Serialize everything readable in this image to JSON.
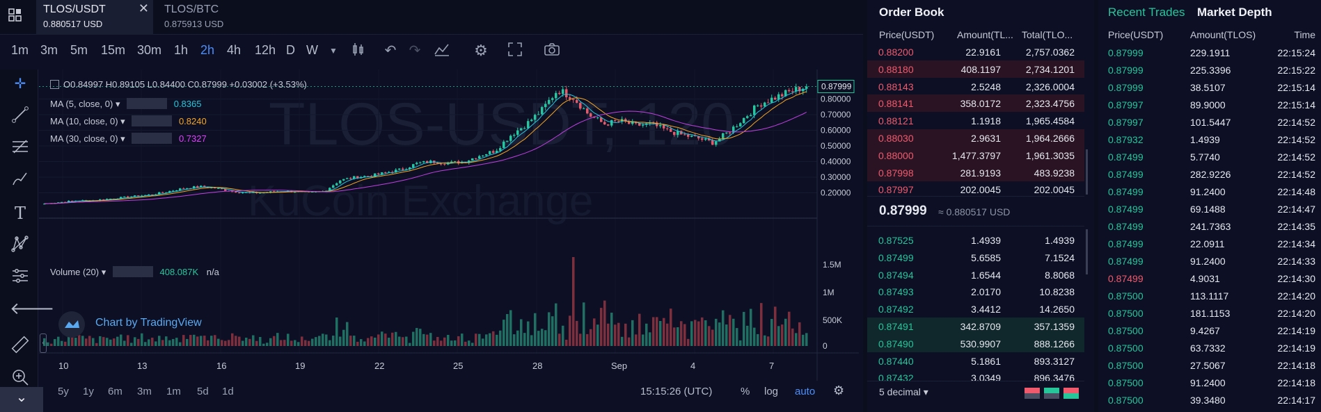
{
  "tabs": [
    {
      "symbol": "TLOS/USDT",
      "price": "0.880517 USD",
      "active": true
    },
    {
      "symbol": "TLOS/BTC",
      "price": "0.875913 USD",
      "active": false
    }
  ],
  "timeframes": [
    "1m",
    "3m",
    "5m",
    "15m",
    "30m",
    "1h",
    "2h",
    "4h",
    "12h",
    "D",
    "W"
  ],
  "selected_timeframe": "2h",
  "legend": {
    "ohlc": "O0.84997  H0.89105  L0.84400  C0.87999  +0.03002 (+3.53%)",
    "ma5_label": "MA (5, close, 0)",
    "ma5_value": "0.8365",
    "ma10_label": "MA (10, close, 0)",
    "ma10_value": "0.8240",
    "ma30_label": "MA (30, close, 0)",
    "ma30_value": "0.7327",
    "volume_label": "Volume (20)",
    "volume_value": "408.087K",
    "volume_na": "n/a",
    "watermark": "TLOS-USDT, 120",
    "watermark_sub": "KuCoin Exchange",
    "tradingview": "Chart by TradingView"
  },
  "chart_data": {
    "type": "candlestick",
    "price_axis": [
      "0.80000",
      "0.70000",
      "0.60000",
      "0.50000",
      "0.40000",
      "0.30000",
      "0.20000"
    ],
    "price_marker": "0.87999",
    "volume_axis": [
      "1.5M",
      "1M",
      "500K",
      "0"
    ],
    "x_ticks": [
      "10",
      "13",
      "16",
      "19",
      "22",
      "25",
      "28",
      "Sep",
      "4",
      "7"
    ],
    "ylim": [
      0.1,
      0.9
    ],
    "close_series": [
      0.13,
      0.14,
      0.15,
      0.15,
      0.16,
      0.17,
      0.18,
      0.19,
      0.21,
      0.23,
      0.24,
      0.23,
      0.21,
      0.2,
      0.2,
      0.21,
      0.21,
      0.2,
      0.21,
      0.28,
      0.3,
      0.31,
      0.33,
      0.35,
      0.39,
      0.4,
      0.39,
      0.4,
      0.44,
      0.47,
      0.57,
      0.64,
      0.73,
      0.86,
      0.81,
      0.7,
      0.64,
      0.66,
      0.63,
      0.64,
      0.6,
      0.57,
      0.55,
      0.52,
      0.59,
      0.68,
      0.77,
      0.81,
      0.85,
      0.88
    ]
  },
  "bottom_ranges": [
    "5y",
    "1y",
    "6m",
    "3m",
    "1m",
    "5d",
    "1d"
  ],
  "clock": "15:15:26 (UTC)",
  "bottom_opts": {
    "percent": "%",
    "log": "log",
    "auto": "auto"
  },
  "orderbook": {
    "title": "Order Book",
    "headers": {
      "price": "Price(USDT)",
      "amount": "Amount(TL...",
      "total": "Total(TLO..."
    },
    "asks": [
      {
        "price": "0.88200",
        "amount": "22.9161",
        "total": "2,757.0362"
      },
      {
        "price": "0.88180",
        "amount": "408.1197",
        "total": "2,734.1201"
      },
      {
        "price": "0.88143",
        "amount": "2.5248",
        "total": "2,326.0004"
      },
      {
        "price": "0.88141",
        "amount": "358.0172",
        "total": "2,323.4756"
      },
      {
        "price": "0.88121",
        "amount": "1.1918",
        "total": "1,965.4584"
      },
      {
        "price": "0.88030",
        "amount": "2.9631",
        "total": "1,964.2666"
      },
      {
        "price": "0.88000",
        "amount": "1,477.3797",
        "total": "1,961.3035"
      },
      {
        "price": "0.87998",
        "amount": "281.9193",
        "total": "483.9238"
      },
      {
        "price": "0.87997",
        "amount": "202.0045",
        "total": "202.0045"
      }
    ],
    "mid": "0.87999",
    "mid_sub": "≈ 0.880517 USD",
    "bids": [
      {
        "price": "0.87525",
        "amount": "1.4939",
        "total": "1.4939"
      },
      {
        "price": "0.87499",
        "amount": "5.6585",
        "total": "7.1524"
      },
      {
        "price": "0.87494",
        "amount": "1.6544",
        "total": "8.8068"
      },
      {
        "price": "0.87493",
        "amount": "2.0170",
        "total": "10.8238"
      },
      {
        "price": "0.87492",
        "amount": "3.4412",
        "total": "14.2650"
      },
      {
        "price": "0.87491",
        "amount": "342.8709",
        "total": "357.1359"
      },
      {
        "price": "0.87490",
        "amount": "530.9907",
        "total": "888.1266"
      },
      {
        "price": "0.87440",
        "amount": "5.1861",
        "total": "893.3127"
      },
      {
        "price": "0.87432",
        "amount": "3.0349",
        "total": "896.3476"
      }
    ],
    "decimal": "5 decimal ▾"
  },
  "trades": {
    "tab_recent": "Recent Trades",
    "tab_depth": "Market Depth",
    "headers": {
      "price": "Price(USDT)",
      "amount": "Amount(TLOS)",
      "time": "Time"
    },
    "rows": [
      {
        "price": "0.87999",
        "amount": "229.1911",
        "time": "22:15:24",
        "side": "up"
      },
      {
        "price": "0.87999",
        "amount": "225.3396",
        "time": "22:15:22",
        "side": "up"
      },
      {
        "price": "0.87999",
        "amount": "38.5107",
        "time": "22:15:14",
        "side": "up"
      },
      {
        "price": "0.87997",
        "amount": "89.9000",
        "time": "22:15:14",
        "side": "up"
      },
      {
        "price": "0.87997",
        "amount": "101.5447",
        "time": "22:14:52",
        "side": "up"
      },
      {
        "price": "0.87932",
        "amount": "1.4939",
        "time": "22:14:52",
        "side": "up"
      },
      {
        "price": "0.87499",
        "amount": "5.7740",
        "time": "22:14:52",
        "side": "up"
      },
      {
        "price": "0.87499",
        "amount": "282.9226",
        "time": "22:14:52",
        "side": "up"
      },
      {
        "price": "0.87499",
        "amount": "91.2400",
        "time": "22:14:48",
        "side": "up"
      },
      {
        "price": "0.87499",
        "amount": "69.1488",
        "time": "22:14:47",
        "side": "up"
      },
      {
        "price": "0.87499",
        "amount": "241.7363",
        "time": "22:14:35",
        "side": "up"
      },
      {
        "price": "0.87499",
        "amount": "22.0911",
        "time": "22:14:34",
        "side": "up"
      },
      {
        "price": "0.87499",
        "amount": "91.2400",
        "time": "22:14:33",
        "side": "up"
      },
      {
        "price": "0.87499",
        "amount": "4.9031",
        "time": "22:14:30",
        "side": "down"
      },
      {
        "price": "0.87500",
        "amount": "113.1117",
        "time": "22:14:20",
        "side": "up"
      },
      {
        "price": "0.87500",
        "amount": "181.1153",
        "time": "22:14:20",
        "side": "up"
      },
      {
        "price": "0.87500",
        "amount": "9.4267",
        "time": "22:14:19",
        "side": "up"
      },
      {
        "price": "0.87500",
        "amount": "63.7332",
        "time": "22:14:19",
        "side": "up"
      },
      {
        "price": "0.87500",
        "amount": "27.5067",
        "time": "22:14:18",
        "side": "up"
      },
      {
        "price": "0.87500",
        "amount": "91.2400",
        "time": "22:14:18",
        "side": "up"
      },
      {
        "price": "0.87500",
        "amount": "39.3480",
        "time": "22:14:17",
        "side": "up"
      }
    ]
  }
}
